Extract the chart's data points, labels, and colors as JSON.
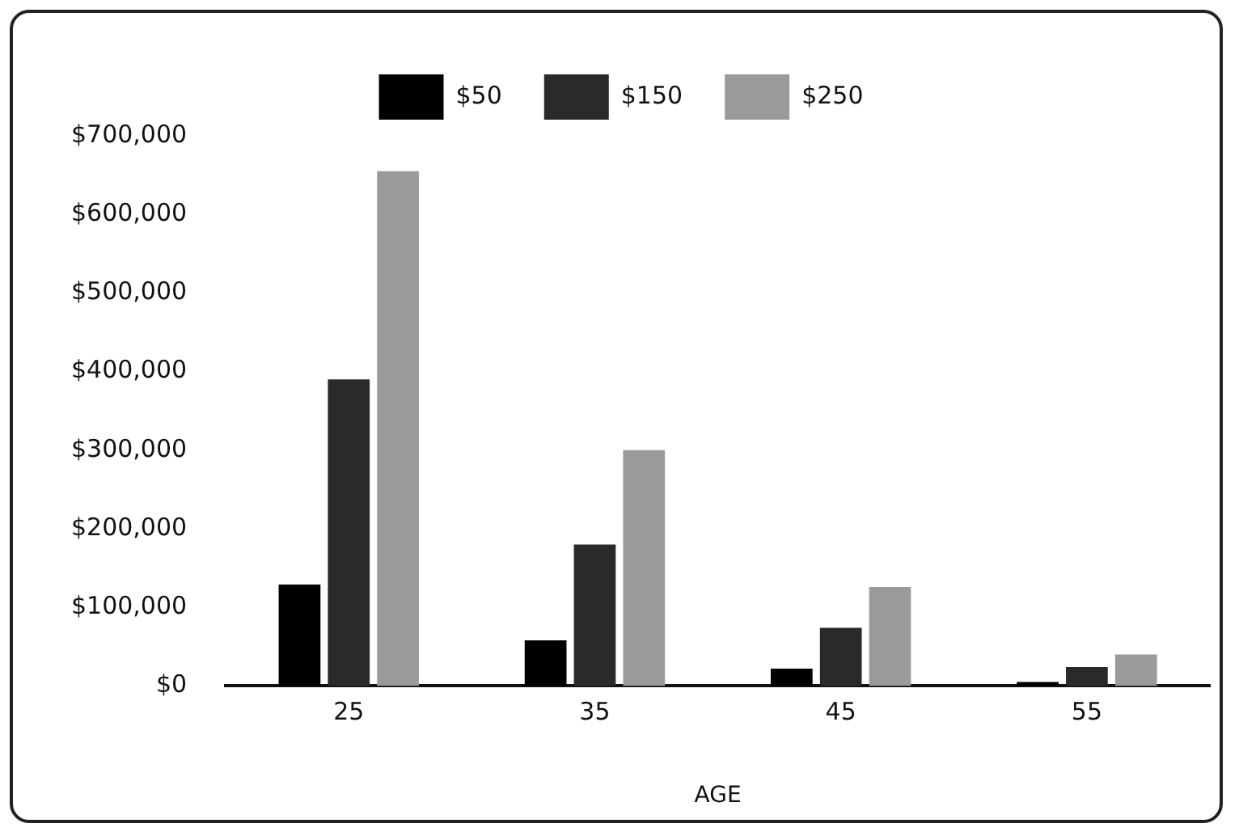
{
  "chart_data": {
    "type": "bar",
    "xlabel": "AGE",
    "categories": [
      "25",
      "35",
      "45",
      "55"
    ],
    "series": [
      {
        "name": "$50",
        "color": "#000000",
        "values": [
          129000,
          58000,
          22000,
          5000
        ]
      },
      {
        "name": "$150",
        "color": "#2a2a2a",
        "values": [
          390000,
          180000,
          74000,
          24000
        ]
      },
      {
        "name": "$250",
        "color": "#9a9a9a",
        "values": [
          655000,
          300000,
          126000,
          40000
        ]
      }
    ],
    "ylim": [
      0,
      700000
    ],
    "yticks": [
      {
        "value": 0,
        "label": "$0"
      },
      {
        "value": 100000,
        "label": "$100,000"
      },
      {
        "value": 200000,
        "label": "$200,000"
      },
      {
        "value": 300000,
        "label": "$300,000"
      },
      {
        "value": 400000,
        "label": "$400,000"
      },
      {
        "value": 500000,
        "label": "$500,000"
      },
      {
        "value": 600000,
        "label": "$600,000"
      },
      {
        "value": 700000,
        "label": "$700,000"
      }
    ],
    "grid": false,
    "legend": "top"
  }
}
